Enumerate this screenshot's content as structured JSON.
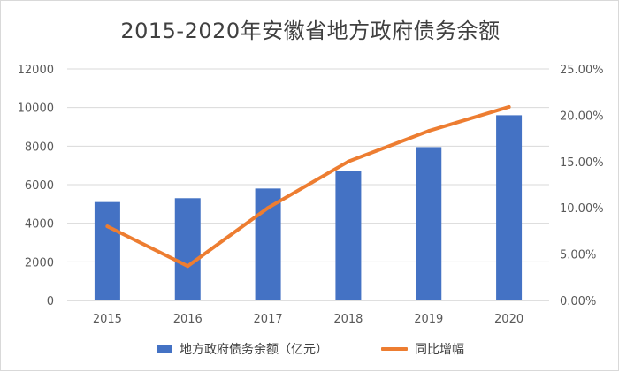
{
  "chart_data": {
    "type": "bar",
    "title": "2015-2020年安徽省地方政府债务余额",
    "categories": [
      "2015",
      "2016",
      "2017",
      "2018",
      "2019",
      "2020"
    ],
    "series": [
      {
        "name": "地方政府债务余额（亿元）",
        "type": "bar",
        "axis": "left",
        "values": [
          5100,
          5300,
          5800,
          6700,
          7950,
          9600
        ],
        "color": "#4472C4"
      },
      {
        "name": "同比增幅",
        "type": "line",
        "axis": "right",
        "values": [
          8.0,
          3.7,
          10.0,
          15.0,
          18.3,
          20.9
        ],
        "color": "#ED7D31"
      }
    ],
    "ylim_left": [
      0,
      12000
    ],
    "yticks_left": [
      "0",
      "2000",
      "4000",
      "6000",
      "8000",
      "10000",
      "12000"
    ],
    "ylim_right": [
      0,
      25
    ],
    "yticks_right": [
      "0.00%",
      "5.00%",
      "10.00%",
      "15.00%",
      "20.00%",
      "25.00%"
    ],
    "grid": true,
    "legend_position": "bottom"
  }
}
